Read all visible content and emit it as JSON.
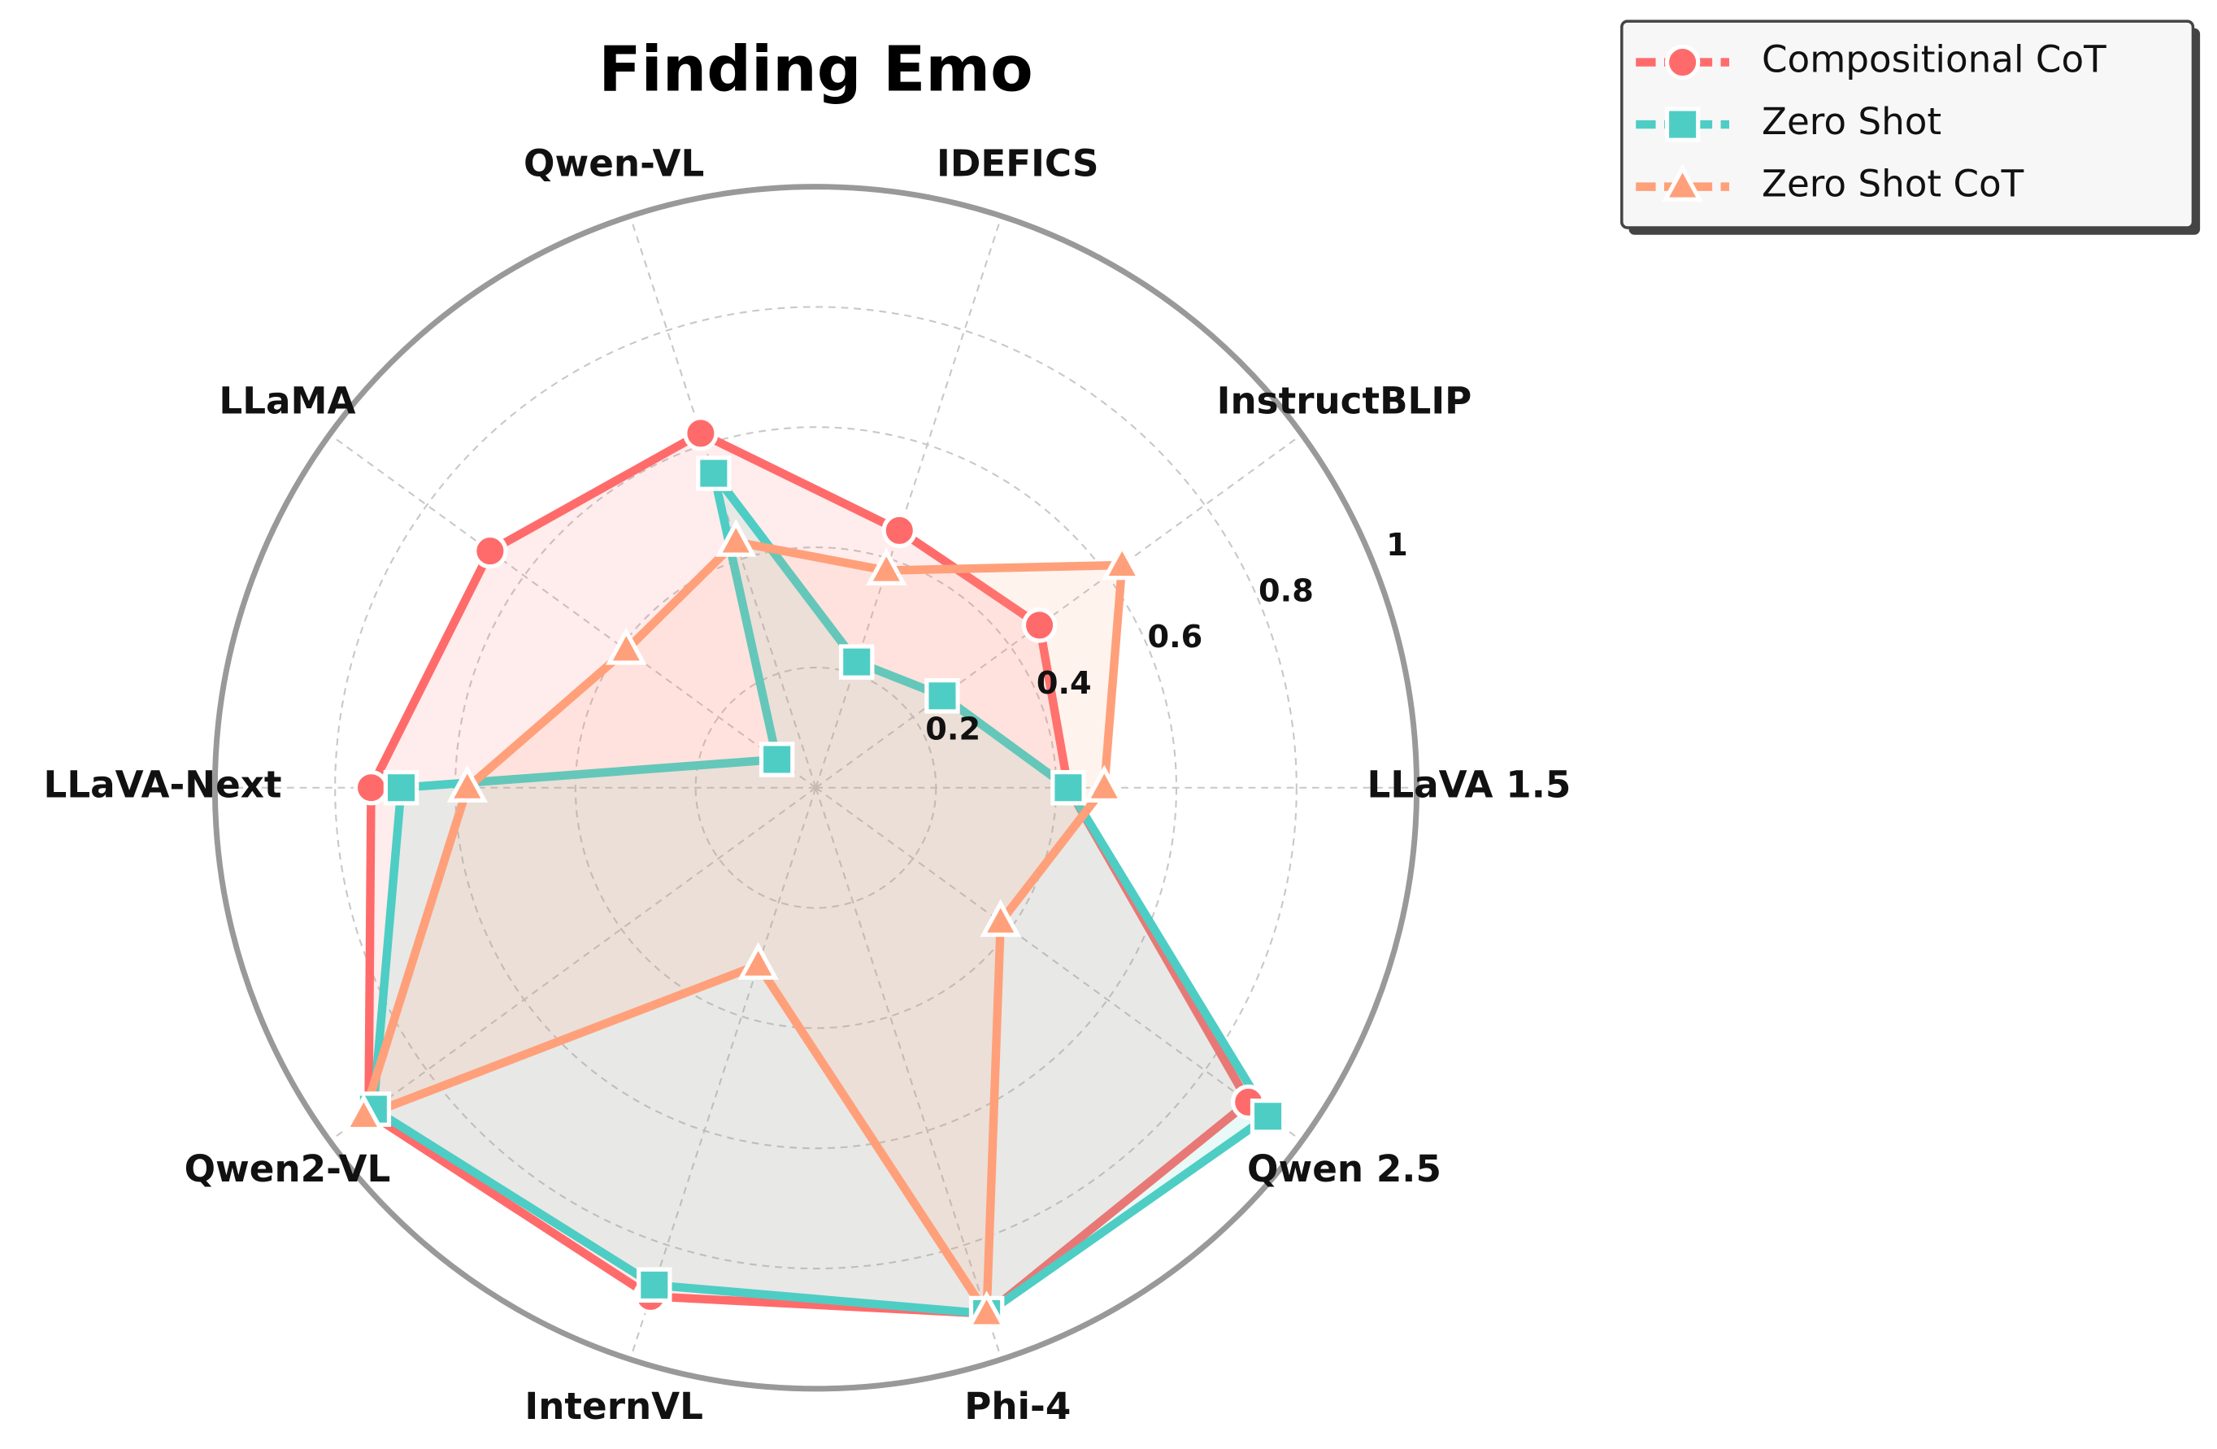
{
  "chart_data": {
    "type": "radar",
    "title": "Finding Emo",
    "categories": [
      "LLaVA 1.5",
      "InstructBLIP",
      "IDEFICS",
      "Qwen-VL",
      "LLaMA",
      "LLaVA-Next",
      "Qwen2-VL",
      "InternVL",
      "Phi-4",
      "Qwen 2.5"
    ],
    "ylim": [
      0,
      1.0
    ],
    "yticks": [
      0.2,
      0.4,
      0.6,
      0.8,
      1.0
    ],
    "grid": true,
    "legend": "upper right",
    "series": [
      {
        "name": "Compositional CoT",
        "color": "#FF6B6B",
        "marker": "circle",
        "values": [
          0.42,
          0.46,
          0.45,
          0.62,
          0.67,
          0.74,
          0.92,
          0.89,
          0.92,
          0.89
        ]
      },
      {
        "name": "Zero Shot",
        "color": "#4ECDC4",
        "marker": "square",
        "values": [
          0.42,
          0.26,
          0.22,
          0.55,
          0.08,
          0.69,
          0.91,
          0.87,
          0.92,
          0.93
        ]
      },
      {
        "name": "Zero Shot CoT",
        "color": "#FFA07A",
        "marker": "triangle",
        "values": [
          0.48,
          0.63,
          0.38,
          0.43,
          0.39,
          0.58,
          0.93,
          0.31,
          0.92,
          0.38
        ]
      }
    ]
  }
}
